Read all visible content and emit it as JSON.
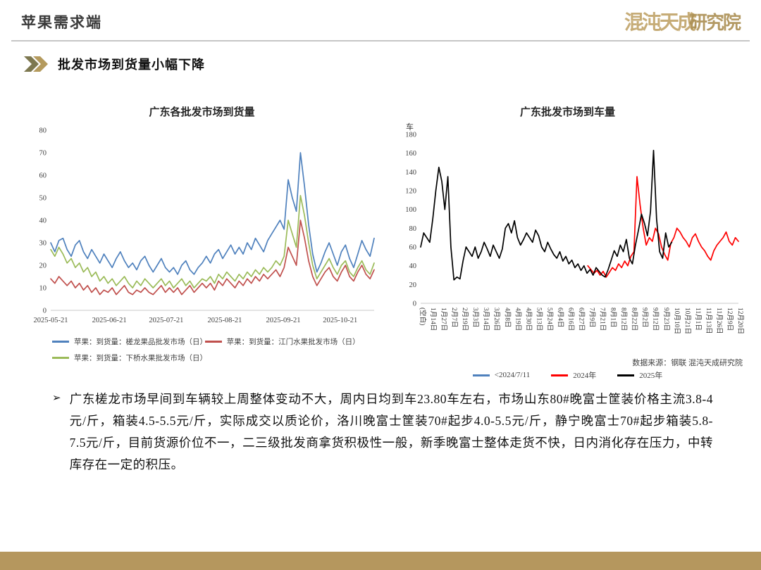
{
  "header": {
    "title": "苹果需求端",
    "logo": {
      "part1": "混沌天成",
      "part2": "研究院"
    }
  },
  "section": {
    "title": "批发市场到货量小幅下降"
  },
  "chart_data": [
    {
      "type": "line",
      "title": "广东各批发市场到货量",
      "ylim": [
        0,
        80
      ],
      "ytick_step": 10,
      "grid": false,
      "legend_position": "bottom",
      "xticks": [
        {
          "label": "2025-05-21",
          "pos": 0
        },
        {
          "label": "2025-06-21",
          "pos": 0.181
        },
        {
          "label": "2025-07-21",
          "pos": 0.357
        },
        {
          "label": "2025-08-21",
          "pos": 0.538
        },
        {
          "label": "2025-09-21",
          "pos": 0.719
        },
        {
          "label": "2025-10-21",
          "pos": 0.895
        }
      ],
      "series": [
        {
          "name": "苹果：到货量：槎龙果品批发市场（日）",
          "color": "#4f81bd",
          "values": [
            30,
            26,
            31,
            32,
            27,
            24,
            29,
            31,
            26,
            23,
            27,
            24,
            21,
            25,
            22,
            19,
            23,
            26,
            22,
            19,
            21,
            18,
            22,
            24,
            20,
            17,
            20,
            23,
            19,
            17,
            19,
            16,
            20,
            22,
            18,
            16,
            19,
            21,
            24,
            21,
            25,
            27,
            23,
            26,
            29,
            25,
            28,
            25,
            30,
            27,
            32,
            29,
            26,
            31,
            34,
            37,
            40,
            36,
            58,
            50,
            44,
            70,
            55,
            38,
            25,
            17,
            21,
            26,
            30,
            25,
            20,
            26,
            29,
            23,
            19,
            25,
            31,
            27,
            24,
            32
          ]
        },
        {
          "name": "苹果：到货量：江门水果批发市场（日）",
          "color": "#c0504d",
          "values": [
            14,
            12,
            15,
            13,
            11,
            13,
            10,
            12,
            9,
            11,
            8,
            10,
            7,
            9,
            8,
            10,
            7,
            9,
            11,
            8,
            7,
            9,
            8,
            10,
            8,
            7,
            9,
            11,
            8,
            10,
            8,
            10,
            7,
            9,
            11,
            8,
            10,
            12,
            10,
            12,
            9,
            13,
            11,
            14,
            12,
            10,
            13,
            11,
            14,
            12,
            15,
            13,
            16,
            14,
            16,
            18,
            15,
            19,
            28,
            24,
            20,
            40,
            32,
            22,
            15,
            11,
            14,
            17,
            19,
            15,
            13,
            17,
            20,
            15,
            13,
            17,
            20,
            16,
            14,
            18
          ]
        },
        {
          "name": "苹果：到货量：下桥水果批发市场（日）",
          "color": "#9bbb59",
          "values": [
            27,
            24,
            28,
            25,
            21,
            23,
            19,
            21,
            17,
            19,
            15,
            17,
            13,
            15,
            12,
            14,
            11,
            13,
            15,
            12,
            10,
            13,
            11,
            14,
            12,
            10,
            12,
            14,
            11,
            13,
            10,
            12,
            14,
            11,
            13,
            10,
            12,
            14,
            13,
            15,
            12,
            16,
            14,
            17,
            15,
            13,
            16,
            14,
            17,
            15,
            18,
            16,
            19,
            17,
            19,
            22,
            20,
            24,
            40,
            34,
            28,
            51,
            42,
            30,
            20,
            14,
            17,
            20,
            23,
            19,
            16,
            20,
            22,
            17,
            15,
            19,
            22,
            18,
            16,
            21
          ]
        }
      ]
    },
    {
      "type": "line",
      "title": "广东批发市场到车量",
      "unit": "车",
      "ylim": [
        0,
        180
      ],
      "ytick_step": 20,
      "grid": false,
      "legend_position": "bottom",
      "source": "数据来源：钢联  混沌天成研究院",
      "xticks": [
        "(空白)",
        "1月14日",
        "1月27日",
        "2月7日",
        "2月19日",
        "3月3日",
        "3月14日",
        "3月26日",
        "4月8日",
        "4月19日",
        "4月30日",
        "5月13日",
        "5月24日",
        "6月4日",
        "6月16日",
        "6月27日",
        "7月9日",
        "7月21日",
        "8月1日",
        "8月12日",
        "8月22日",
        "9月2日",
        "9月12日",
        "9月23日",
        "10月10日",
        "10月21日",
        "11月1日",
        "11月13日",
        "11月26日",
        "12月9日",
        "12月20日"
      ],
      "series": [
        {
          "name": "<2024/7/11",
          "color": "#4f81bd",
          "xstart": 0,
          "xend": 0.02,
          "values": []
        },
        {
          "name": "2024年",
          "color": "#fe0000",
          "xstart": 0.526,
          "xend": 1,
          "values": [
            40,
            36,
            32,
            35,
            30,
            34,
            28,
            33,
            38,
            35,
            42,
            38,
            45,
            40,
            50,
            55,
            135,
            105,
            80,
            62,
            70,
            66,
            80,
            74,
            60,
            52,
            46,
            64,
            70,
            80,
            76,
            70,
            66,
            60,
            70,
            74,
            66,
            60,
            56,
            50,
            46,
            56,
            62,
            66,
            70,
            76,
            66,
            62,
            70,
            66
          ]
        },
        {
          "name": "2025年",
          "color": "#000000",
          "xstart": 0,
          "xend": 0.79,
          "values": [
            60,
            75,
            70,
            65,
            90,
            120,
            145,
            130,
            100,
            135,
            60,
            25,
            28,
            26,
            45,
            60,
            55,
            50,
            60,
            48,
            55,
            65,
            58,
            50,
            62,
            55,
            48,
            58,
            80,
            85,
            75,
            88,
            70,
            62,
            68,
            75,
            70,
            65,
            78,
            72,
            60,
            55,
            65,
            58,
            52,
            48,
            55,
            45,
            50,
            42,
            46,
            38,
            42,
            35,
            40,
            32,
            36,
            30,
            38,
            34,
            30,
            28,
            36,
            46,
            56,
            50,
            62,
            55,
            68,
            48,
            42,
            62,
            78,
            95,
            85,
            72,
            98,
            163,
            90,
            55,
            48,
            75,
            60,
            65
          ]
        }
      ]
    }
  ],
  "bullet": {
    "marker": "➢",
    "text": "广东槎龙市场早间到车辆较上周整体变动不大，周内日均到车23.80车左右，市场山东80#晚富士筐装价格主流3.8-4元/斤，箱装4.5-5.5元/斤，实际成交以质论价，洛川晚富士筐装70#起步4.0-5.5元/斤，静宁晚富士70#起步箱装5.8-7.5元/斤，目前货源价位不一，二三级批发商拿货积极性一般，新季晚富士整体走货不快，日内消化存在压力，中转库存在一定的积压。"
  }
}
